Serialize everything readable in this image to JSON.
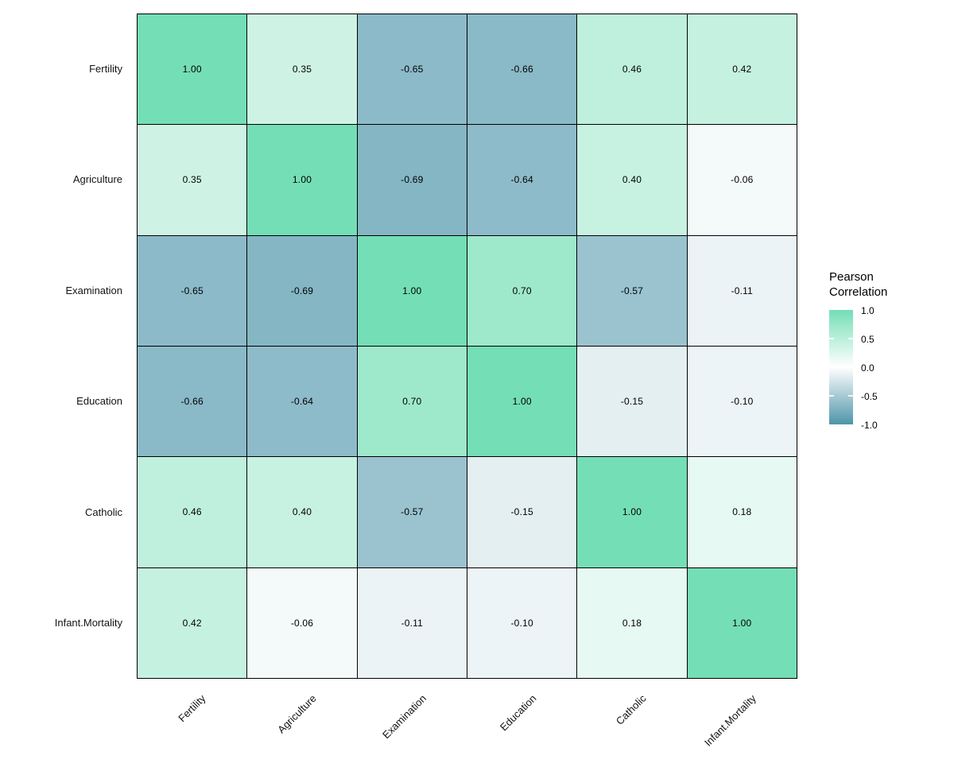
{
  "chart_data": {
    "type": "heatmap",
    "title": "",
    "variables": [
      "Fertility",
      "Agriculture",
      "Examination",
      "Education",
      "Catholic",
      "Infant.Mortality"
    ],
    "matrix": [
      [
        1.0,
        0.35,
        -0.65,
        -0.66,
        0.46,
        0.42
      ],
      [
        0.35,
        1.0,
        -0.69,
        -0.64,
        0.4,
        -0.06
      ],
      [
        -0.65,
        -0.69,
        1.0,
        0.7,
        -0.57,
        -0.11
      ],
      [
        -0.66,
        -0.64,
        0.7,
        1.0,
        -0.15,
        -0.1
      ],
      [
        0.46,
        0.4,
        -0.57,
        -0.15,
        1.0,
        0.18
      ],
      [
        0.42,
        -0.06,
        -0.11,
        -0.1,
        0.18,
        1.0
      ]
    ],
    "value_decimals": 2,
    "legend": {
      "title_lines": [
        "Pearson",
        "Correlation"
      ],
      "tick_values": [
        1.0,
        0.5,
        0.0,
        -0.5,
        -1.0
      ],
      "tick_labels": [
        "1.0",
        "0.5",
        "0.0",
        "-0.5",
        "-1.0"
      ],
      "position": "right"
    },
    "color_scale": {
      "high": "#74DEB6",
      "mid": "#FFFFFF",
      "low": "#4E95AA",
      "domain": [
        -1,
        1
      ]
    },
    "grid_line_color": "#000000",
    "value_text_color": "#000000",
    "axis_text_color": "#141414",
    "x_axis_angle_deg": 45,
    "grid": true
  }
}
